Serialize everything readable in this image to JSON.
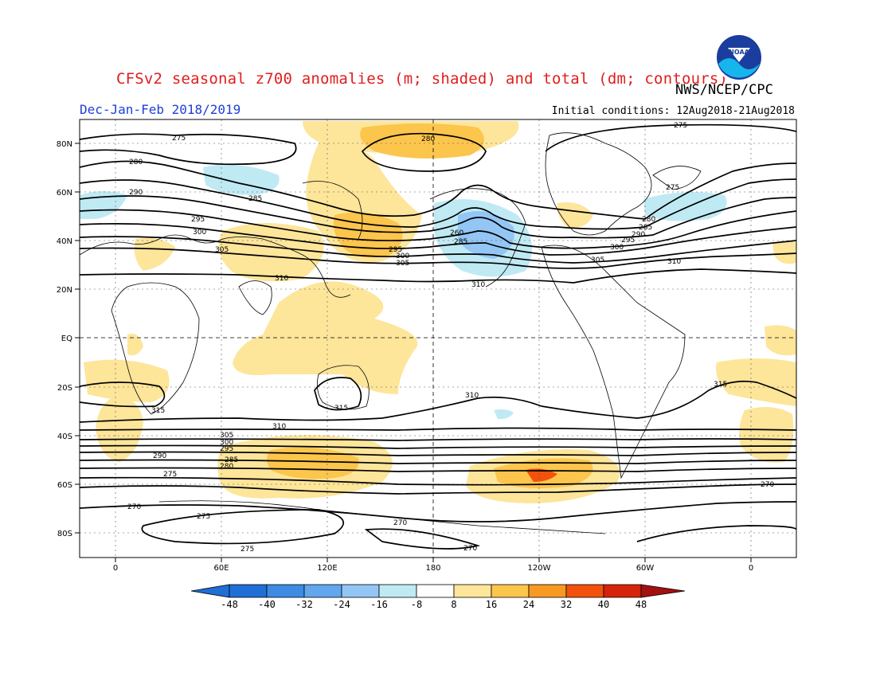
{
  "title": "CFSv2 seasonal z700 anomalies (m; shaded) and total (dm; contours)",
  "agency": "NWS/NCEP/CPC",
  "season": "Dec-Jan-Feb 2018/2019",
  "initial_conditions": "Initial conditions: 12Aug2018-21Aug2018",
  "logo_text": "NOAA",
  "colors": {
    "anomaly_scale": [
      "#1f6fd6",
      "#3d8be4",
      "#62a6ee",
      "#93c6f4",
      "#bfeaf4",
      "#ffffff",
      "#fde59a",
      "#fcc54c",
      "#f89a22",
      "#f2520c",
      "#d6240a",
      "#a40f0f"
    ],
    "contour": "#000000"
  },
  "map": {
    "lat_labels": [
      "80N",
      "60N",
      "40N",
      "20N",
      "EQ",
      "20S",
      "40S",
      "60S",
      "80S"
    ],
    "lon_labels": [
      "0",
      "60E",
      "120E",
      "180",
      "120W",
      "60W",
      "0"
    ],
    "contour_labels": [
      "275",
      "280",
      "285",
      "290",
      "295",
      "300",
      "305",
      "310",
      "315",
      "310",
      "305",
      "300",
      "295",
      "290",
      "285",
      "280",
      "275",
      "270",
      "280",
      "260",
      "285",
      "295",
      "300",
      "305",
      "310",
      "315",
      "275",
      "270",
      "275",
      "280",
      "285",
      "290",
      "295",
      "300",
      "305",
      "310",
      "270",
      "275",
      "310",
      "315",
      "270",
      "275"
    ]
  },
  "colorbar": {
    "ticks": [
      "-48",
      "-40",
      "-32",
      "-24",
      "-16",
      "-8",
      "8",
      "16",
      "24",
      "32",
      "40",
      "48"
    ]
  }
}
